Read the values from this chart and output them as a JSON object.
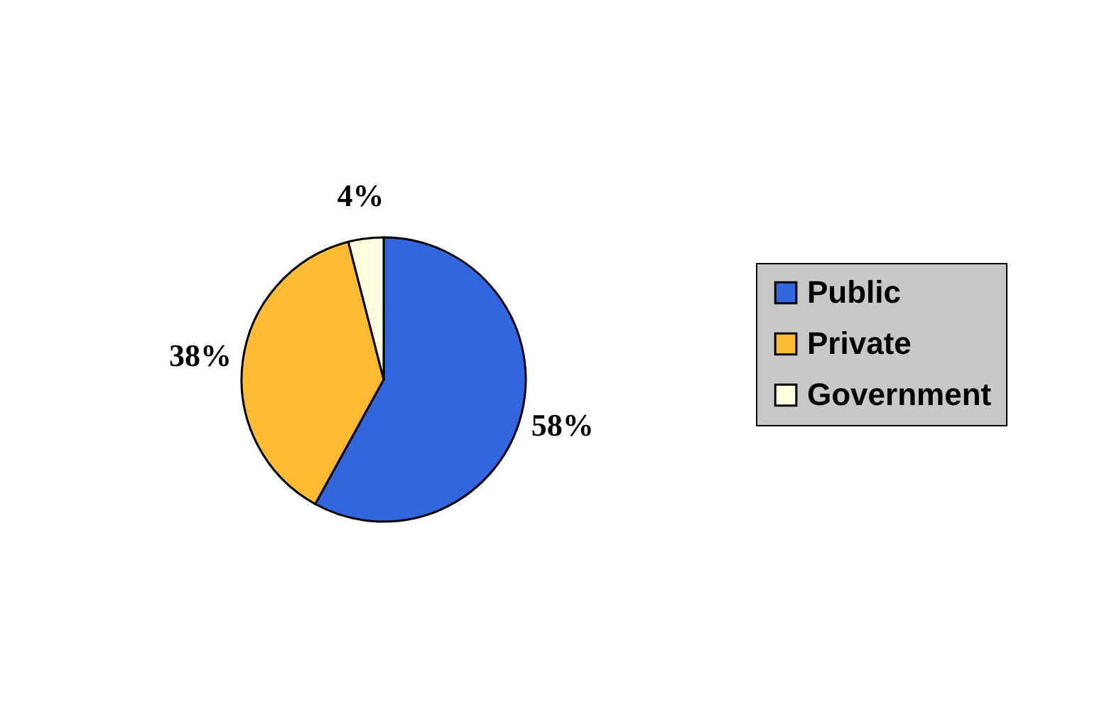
{
  "chart_data": {
    "type": "pie",
    "categories": [
      "Public",
      "Private",
      "Government"
    ],
    "values": [
      58,
      38,
      4
    ],
    "colors": [
      "#3366dd",
      "#ffbb33",
      "#ffffe0"
    ],
    "value_labels": [
      "58%",
      "38%",
      "4%"
    ],
    "legend": "right"
  }
}
